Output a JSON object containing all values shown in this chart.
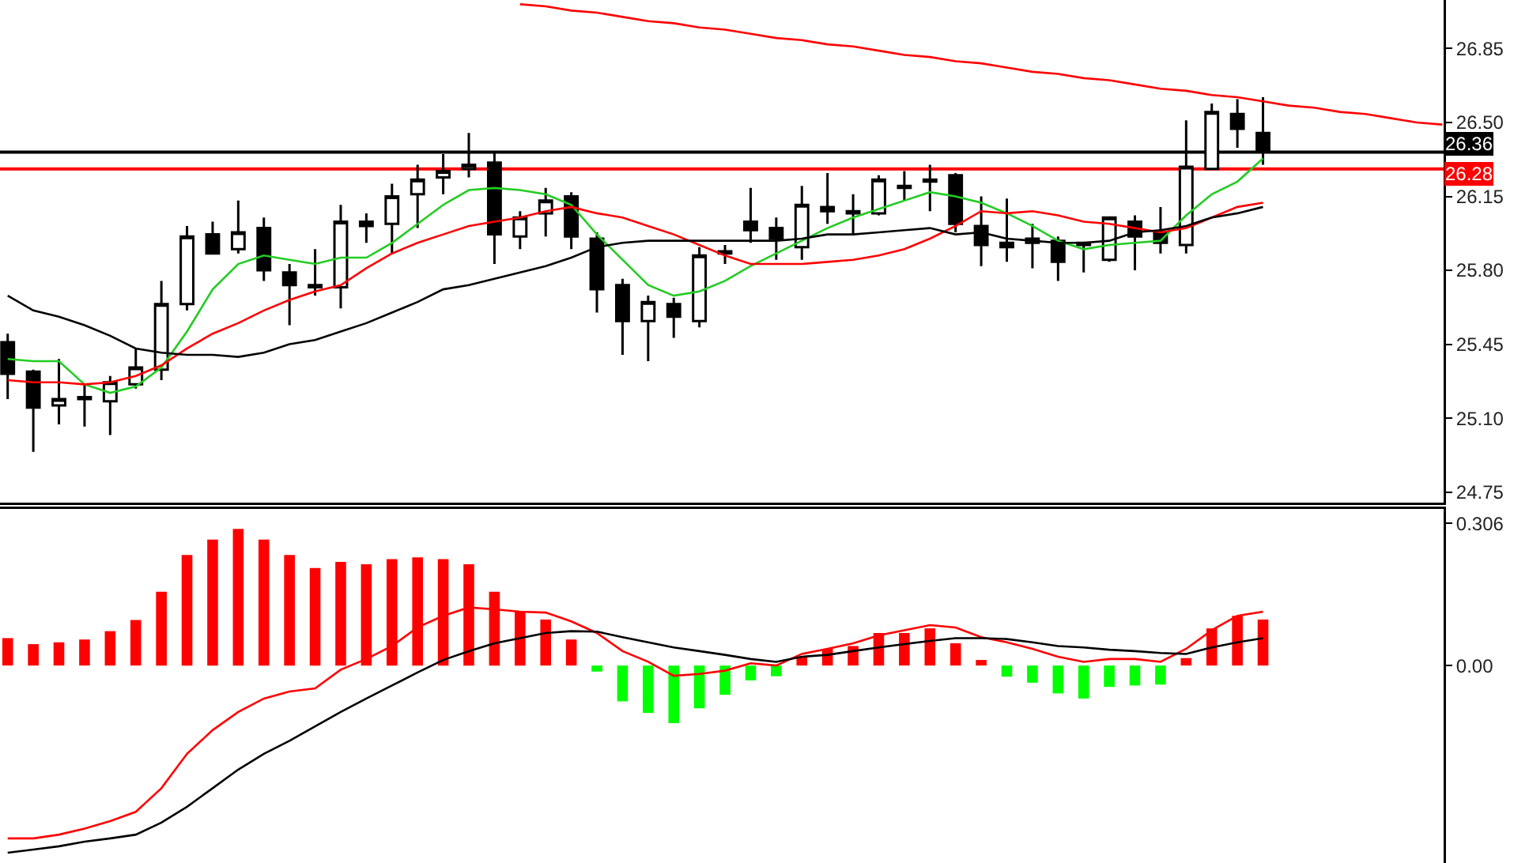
{
  "chart_data": [
    {
      "type": "candlestick",
      "categories": [
        null,
        null,
        null,
        null,
        null,
        null,
        null,
        null,
        null,
        null,
        null,
        null,
        null,
        null,
        null,
        null,
        null,
        null,
        null,
        null,
        null,
        null,
        null,
        null,
        null,
        null,
        null,
        null,
        null,
        null,
        null,
        null,
        null,
        null,
        null,
        null,
        null,
        null,
        null,
        null,
        null,
        null,
        null,
        null,
        null,
        null,
        null,
        null,
        null,
        null,
        null,
        null,
        null,
        null,
        null,
        null,
        null
      ],
      "ohlc": [
        [
          25.46,
          25.5,
          25.19,
          25.31
        ],
        [
          25.32,
          25.33,
          24.94,
          25.15
        ],
        [
          25.16,
          25.38,
          25.07,
          25.19
        ],
        [
          25.2,
          25.26,
          25.06,
          25.19
        ],
        [
          25.18,
          25.3,
          25.02,
          25.27
        ],
        [
          25.26,
          25.43,
          25.24,
          25.34
        ],
        [
          25.33,
          25.75,
          25.28,
          25.64
        ],
        [
          25.64,
          26.01,
          25.61,
          25.96
        ],
        [
          25.97,
          26.03,
          25.88,
          25.88
        ],
        [
          25.9,
          26.13,
          25.88,
          25.98
        ],
        [
          26.0,
          26.05,
          25.75,
          25.8
        ],
        [
          25.79,
          25.83,
          25.54,
          25.73
        ],
        [
          25.73,
          25.9,
          25.68,
          25.72
        ],
        [
          25.72,
          26.11,
          25.62,
          26.03
        ],
        [
          26.03,
          26.07,
          25.93,
          26.01
        ],
        [
          26.02,
          26.21,
          25.88,
          26.15
        ],
        [
          26.16,
          26.3,
          26.0,
          26.23
        ],
        [
          26.24,
          26.35,
          26.16,
          26.27
        ],
        [
          26.28,
          26.45,
          26.24,
          26.3
        ],
        [
          26.31,
          26.36,
          25.83,
          25.97
        ],
        [
          25.96,
          26.08,
          25.9,
          26.05
        ],
        [
          26.07,
          26.19,
          25.96,
          26.13
        ],
        [
          26.15,
          26.17,
          25.9,
          25.96
        ],
        [
          25.95,
          25.98,
          25.6,
          25.71
        ],
        [
          25.73,
          25.76,
          25.4,
          25.56
        ],
        [
          25.56,
          25.68,
          25.37,
          25.65
        ],
        [
          25.64,
          25.67,
          25.48,
          25.58
        ],
        [
          25.56,
          25.91,
          25.53,
          25.87
        ],
        [
          25.89,
          25.92,
          25.83,
          25.88
        ],
        [
          26.03,
          26.19,
          25.93,
          25.99
        ],
        [
          26.0,
          26.05,
          25.85,
          25.95
        ],
        [
          25.91,
          26.2,
          25.85,
          26.11
        ],
        [
          26.1,
          26.26,
          26.02,
          26.08
        ],
        [
          26.08,
          26.16,
          25.97,
          26.07
        ],
        [
          26.07,
          26.25,
          26.06,
          26.23
        ],
        [
          26.2,
          26.27,
          26.13,
          26.19
        ],
        [
          26.22,
          26.3,
          26.08,
          26.23
        ],
        [
          26.25,
          26.26,
          25.98,
          26.02
        ],
        [
          26.01,
          26.15,
          25.82,
          25.92
        ],
        [
          25.93,
          26.14,
          25.84,
          25.91
        ],
        [
          25.93,
          26.02,
          25.81,
          25.95
        ],
        [
          25.94,
          25.96,
          25.75,
          25.84
        ],
        [
          25.93,
          25.93,
          25.79,
          25.92
        ],
        [
          25.85,
          26.05,
          25.84,
          26.05
        ],
        [
          26.03,
          26.06,
          25.8,
          25.96
        ],
        [
          25.98,
          26.1,
          25.88,
          25.93
        ],
        [
          25.92,
          26.51,
          25.88,
          26.29
        ],
        [
          26.28,
          26.59,
          26.28,
          26.55
        ],
        [
          26.54,
          26.61,
          26.38,
          26.47
        ],
        [
          26.45,
          26.62,
          26.3,
          26.36
        ],
        null,
        null,
        null,
        null,
        null,
        null,
        null
      ],
      "series": [
        {
          "type": "line",
          "color": "#22cc22",
          "values": [
            25.38,
            25.37,
            25.37,
            25.26,
            25.22,
            25.25,
            25.34,
            25.51,
            25.71,
            25.83,
            25.87,
            25.85,
            25.83,
            25.86,
            25.86,
            25.93,
            26.02,
            26.11,
            26.18,
            26.19,
            26.18,
            26.16,
            26.11,
            25.97,
            25.85,
            25.73,
            25.68,
            25.7,
            25.75,
            25.82,
            25.88,
            25.94,
            26.0,
            26.05,
            26.09,
            26.13,
            26.17,
            26.15,
            26.12,
            26.07,
            26.01,
            25.94,
            25.9,
            25.92,
            25.93,
            25.94,
            26.06,
            26.16,
            26.22,
            26.33,
            null,
            null,
            null,
            null,
            null,
            null,
            null
          ]
        },
        {
          "type": "line",
          "color": "#ff0000",
          "values": [
            25.28,
            25.27,
            25.27,
            25.26,
            25.27,
            25.3,
            25.35,
            25.43,
            25.5,
            25.55,
            25.61,
            25.66,
            25.7,
            25.73,
            25.81,
            25.88,
            25.93,
            25.97,
            26.01,
            26.03,
            26.05,
            26.08,
            26.1,
            26.07,
            26.05,
            26.01,
            25.97,
            25.92,
            25.87,
            25.83,
            25.83,
            25.83,
            25.84,
            25.85,
            25.87,
            25.9,
            25.95,
            26.01,
            26.08,
            26.07,
            26.08,
            26.06,
            26.03,
            26.02,
            26.0,
            25.98,
            26.0,
            26.05,
            26.1,
            26.12,
            null,
            null,
            null,
            null,
            null,
            null,
            null
          ]
        },
        {
          "type": "line",
          "color": "#000000",
          "values": [
            25.68,
            25.61,
            25.58,
            25.54,
            25.49,
            25.43,
            25.41,
            25.4,
            25.4,
            25.39,
            25.41,
            25.45,
            25.47,
            25.51,
            25.55,
            25.6,
            25.65,
            25.71,
            25.73,
            25.76,
            25.79,
            25.82,
            25.86,
            25.91,
            25.93,
            25.94,
            25.94,
            25.94,
            25.94,
            25.94,
            25.94,
            25.95,
            25.97,
            25.97,
            25.98,
            25.99,
            26.0,
            25.97,
            25.98,
            25.95,
            25.94,
            25.93,
            25.93,
            25.94,
            25.98,
            25.99,
            26.01,
            26.05,
            26.07,
            26.1,
            null,
            null,
            null,
            null,
            null,
            null,
            null
          ]
        },
        {
          "type": "line",
          "color": "#ff0000",
          "values": [
            null,
            null,
            null,
            null,
            null,
            null,
            null,
            null,
            null,
            null,
            null,
            null,
            null,
            null,
            null,
            null,
            null,
            null,
            null,
            null,
            27.06,
            27.05,
            27.03,
            27.02,
            27.0,
            26.98,
            26.97,
            26.95,
            26.94,
            26.92,
            26.9,
            26.89,
            26.87,
            26.86,
            26.84,
            26.82,
            26.81,
            26.79,
            26.78,
            26.76,
            26.74,
            26.73,
            26.71,
            26.7,
            26.68,
            26.66,
            26.65,
            26.63,
            26.62,
            26.6,
            26.58,
            26.57,
            26.55,
            26.54,
            26.52,
            26.5,
            26.49
          ]
        }
      ],
      "ref_lines": [
        {
          "axis": "y",
          "value": 26.36,
          "label": "26.36",
          "color": "#000000"
        },
        {
          "axis": "y",
          "value": 26.28,
          "label": "26.28",
          "color": "#ff0000"
        }
      ],
      "ylim": [
        24.7,
        27.08
      ],
      "yticks": [
        {
          "value": 24.75,
          "label": "24.75"
        },
        {
          "value": 25.1,
          "label": "25.10"
        },
        25.45,
        {
          "value": 25.8,
          "label": "25.80"
        },
        26.15,
        {
          "value": 26.5,
          "label": "26.50"
        },
        26.85
      ],
      "tick_labels": "y"
    },
    {
      "type": "bar",
      "categories": [
        null,
        null,
        null,
        null,
        null,
        null,
        null,
        null,
        null,
        null,
        null,
        null,
        null,
        null,
        null,
        null,
        null,
        null,
        null,
        null,
        null,
        null,
        null,
        null,
        null,
        null,
        null,
        null,
        null,
        null,
        null,
        null,
        null,
        null,
        null,
        null,
        null,
        null,
        null,
        null,
        null,
        null,
        null,
        null,
        null,
        null,
        null,
        null,
        null,
        null,
        null,
        null,
        null,
        null,
        null,
        null,
        null
      ],
      "series": [
        {
          "type": "bar",
          "values": [
            0.059,
            0.046,
            0.05,
            0.056,
            0.074,
            0.098,
            0.159,
            0.238,
            0.271,
            0.294,
            0.271,
            0.238,
            0.21,
            0.223,
            0.218,
            0.229,
            0.233,
            0.229,
            0.218,
            0.159,
            0.116,
            0.099,
            0.056,
            -0.013,
            -0.077,
            -0.102,
            -0.124,
            -0.092,
            -0.063,
            -0.032,
            -0.023,
            0.019,
            0.036,
            0.042,
            0.07,
            0.07,
            0.08,
            0.048,
            0.012,
            -0.024,
            -0.037,
            -0.06,
            -0.071,
            -0.046,
            -0.043,
            -0.041,
            0.016,
            0.08,
            0.107,
            0.099,
            null,
            null,
            null,
            null,
            null,
            null,
            null
          ],
          "colors": [
            "#ff0000",
            "#ff0000",
            "#ff0000",
            "#ff0000",
            "#ff0000",
            "#ff0000",
            "#ff0000",
            "#ff0000",
            "#ff0000",
            "#ff0000",
            "#ff0000",
            "#ff0000",
            "#ff0000",
            "#ff0000",
            "#ff0000",
            "#ff0000",
            "#ff0000",
            "#ff0000",
            "#ff0000",
            "#ff0000",
            "#ff0000",
            "#ff0000",
            "#ff0000",
            "#00ff00",
            "#00ff00",
            "#00ff00",
            "#00ff00",
            "#00ff00",
            "#00ff00",
            "#00ff00",
            "#00ff00",
            "#ff0000",
            "#ff0000",
            "#ff0000",
            "#ff0000",
            "#ff0000",
            "#ff0000",
            "#ff0000",
            "#ff0000",
            "#00ff00",
            "#00ff00",
            "#00ff00",
            "#00ff00",
            "#00ff00",
            "#00ff00",
            "#00ff00",
            "#ff0000",
            "#ff0000",
            "#ff0000",
            "#ff0000",
            "#ff0000",
            "#ff0000",
            "#ff0000",
            "#ff0000",
            "#ff0000",
            "#ff0000",
            "#ff0000"
          ]
        },
        {
          "type": "line",
          "color": "#ff0000",
          "values": [
            -0.372,
            -0.372,
            -0.364,
            -0.351,
            -0.335,
            -0.315,
            -0.264,
            -0.19,
            -0.139,
            -0.1,
            -0.071,
            -0.056,
            -0.049,
            -0.009,
            0.014,
            0.042,
            0.082,
            0.107,
            0.125,
            0.121,
            0.116,
            0.114,
            0.095,
            0.07,
            0.031,
            0.008,
            -0.022,
            -0.018,
            -0.011,
            0.005,
            0.0,
            0.025,
            0.036,
            0.048,
            0.065,
            0.076,
            0.087,
            0.082,
            0.061,
            0.05,
            0.036,
            0.019,
            0.008,
            0.014,
            0.014,
            0.008,
            0.036,
            0.076,
            0.107,
            0.116,
            null,
            null,
            null,
            null,
            null,
            null,
            null
          ]
        },
        {
          "type": "line",
          "color": "#000000",
          "values": [
            -0.403,
            -0.396,
            -0.389,
            -0.379,
            -0.372,
            -0.364,
            -0.338,
            -0.304,
            -0.264,
            -0.224,
            -0.19,
            -0.162,
            -0.131,
            -0.1,
            -0.071,
            -0.043,
            -0.015,
            0.012,
            0.031,
            0.048,
            0.059,
            0.07,
            0.074,
            0.073,
            0.061,
            0.05,
            0.039,
            0.031,
            0.023,
            0.014,
            0.008,
            0.019,
            0.023,
            0.031,
            0.039,
            0.046,
            0.053,
            0.059,
            0.059,
            0.057,
            0.05,
            0.042,
            0.039,
            0.034,
            0.031,
            0.027,
            0.025,
            0.039,
            0.05,
            0.059,
            null,
            null,
            null,
            null,
            null,
            null,
            null
          ]
        }
      ],
      "ylim": [
        -0.425,
        0.337
      ],
      "yticks": [
        {
          "value": 0,
          "label": "0.00"
        },
        0.306
      ],
      "tick_labels": "y"
    }
  ]
}
